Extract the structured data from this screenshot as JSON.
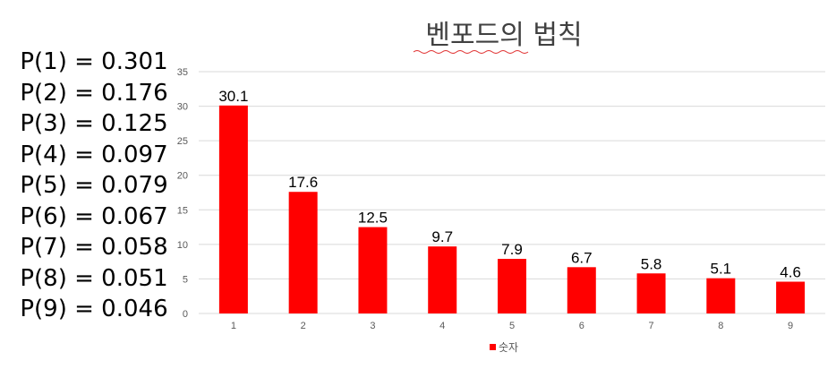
{
  "probabilities": [
    "P(1) = 0.301",
    "P(2) = 0.176",
    "P(3) = 0.125",
    "P(4) = 0.097",
    "P(5) = 0.079",
    "P(6) = 0.067",
    "P(7) = 0.058",
    "P(8) = 0.051",
    "P(9) = 0.046"
  ],
  "chart_data": {
    "type": "bar",
    "title": "벤포드의 법칙",
    "xlabel": "",
    "ylabel": "",
    "categories": [
      "1",
      "2",
      "3",
      "4",
      "5",
      "6",
      "7",
      "8",
      "9"
    ],
    "series": [
      {
        "name": "숫자",
        "color": "#ff0000",
        "values": [
          30.1,
          17.6,
          12.5,
          9.7,
          7.9,
          6.7,
          5.8,
          5.1,
          4.6
        ]
      }
    ],
    "ylim": [
      0,
      35
    ],
    "yticks": [
      0,
      5,
      10,
      15,
      20,
      25,
      30,
      35
    ],
    "grid": true,
    "legend": "bottom",
    "data_labels": true
  }
}
